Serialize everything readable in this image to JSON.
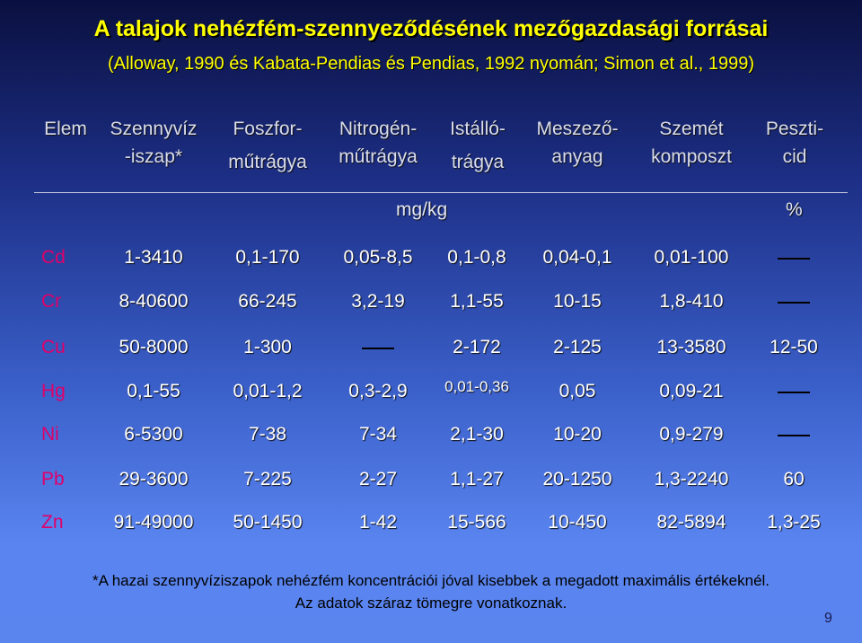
{
  "slide": {
    "title": "A talajok nehézfém-szennyeződésének mezőgazdasági forrásai",
    "subtitle": "(Alloway, 1990 és Kabata-Pendias és Pendias, 1992 nyomán; Simon et al., 1999)",
    "page_number": "9"
  },
  "table": {
    "headers": [
      {
        "line1": "Elem",
        "line2": ""
      },
      {
        "line1": "Szennyvíz",
        "line2": "-iszap*"
      },
      {
        "line1": "Foszfor-",
        "line2": "műtrágya"
      },
      {
        "line1": "Nitrogén-",
        "line2": "műtrágya"
      },
      {
        "line1": "Istálló-",
        "line2": "trágya"
      },
      {
        "line1": "Meszező-",
        "line2": "anyag"
      },
      {
        "line1": "Szemét",
        "line2": "komposzt"
      },
      {
        "line1": "Peszti-",
        "line2": "cid"
      }
    ],
    "unit_main": "mg/kg",
    "unit_last": "%",
    "rows": [
      {
        "element": "Cd",
        "values": [
          "1-3410",
          "0,1-170",
          "0,05-8,5",
          "0,1-0,8",
          "0,04-0,1",
          "0,01-100",
          "—"
        ]
      },
      {
        "element": "Cr",
        "values": [
          "8-40600",
          "66-245",
          "3,2-19",
          "1,1-55",
          "10-15",
          "1,8-410",
          "—"
        ]
      },
      {
        "element": "Cu",
        "values": [
          "50-8000",
          "1-300",
          "—",
          "2-172",
          "2-125",
          "13-3580",
          "12-50"
        ]
      },
      {
        "element": "Hg",
        "values": [
          "0,1-55",
          "0,01-1,2",
          "0,3-2,9",
          "0,01-0,36",
          "0,05",
          "0,09-21",
          "—"
        ]
      },
      {
        "element": "Ni",
        "values": [
          "6-5300",
          "7-38",
          "7-34",
          "2,1-30",
          "10-20",
          "0,9-279",
          "—"
        ]
      },
      {
        "element": "Pb",
        "values": [
          "29-3600",
          "7-225",
          "2-27",
          "1,1-27",
          "20-1250",
          "1,3-2240",
          "60"
        ]
      },
      {
        "element": "Zn",
        "values": [
          "91-49000",
          "50-1450",
          "1-42",
          "15-566",
          "10-450",
          "82-5894",
          "1,3-25"
        ]
      }
    ]
  },
  "footnote": {
    "line1": "*A hazai szennyvíziszapok nehézfém koncentrációi jóval kisebbek a megadott maximális értékeknél.",
    "line2": "Az adatok száraz tömegre vonatkoznak."
  },
  "colors": {
    "title": "#ffff00",
    "element_label": "#e0006a",
    "cell_text": "#ffffff"
  }
}
